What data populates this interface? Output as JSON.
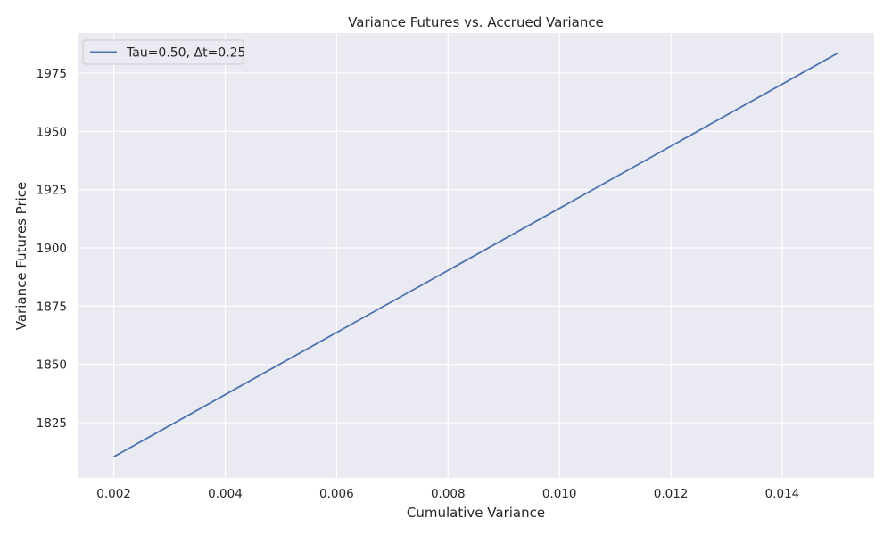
{
  "chart_data": {
    "type": "line",
    "title": "Variance Futures vs. Accrued Variance",
    "xlabel": "Cumulative Variance",
    "ylabel": "Variance Futures Price",
    "xlim": [
      0.00135,
      0.01565
    ],
    "ylim": [
      1801.3,
      1992.2
    ],
    "grid": true,
    "legend_position": "top-left",
    "xticks": [
      {
        "value": 0.002,
        "label": "0.002"
      },
      {
        "value": 0.004,
        "label": "0.004"
      },
      {
        "value": 0.006,
        "label": "0.006"
      },
      {
        "value": 0.008,
        "label": "0.008"
      },
      {
        "value": 0.01,
        "label": "0.010"
      },
      {
        "value": 0.012,
        "label": "0.012"
      },
      {
        "value": 0.014,
        "label": "0.014"
      }
    ],
    "yticks": [
      {
        "value": 1825,
        "label": "1825"
      },
      {
        "value": 1850,
        "label": "1850"
      },
      {
        "value": 1875,
        "label": "1875"
      },
      {
        "value": 1900,
        "label": "1900"
      },
      {
        "value": 1925,
        "label": "1925"
      },
      {
        "value": 1950,
        "label": "1950"
      },
      {
        "value": 1975,
        "label": "1975"
      }
    ],
    "series": [
      {
        "name": "Tau=0.50, Δt=0.25",
        "color": "#4c72b0",
        "x": [
          0.002,
          0.015
        ],
        "y": [
          1810.4,
          1983.6
        ]
      }
    ]
  },
  "colors": {
    "plot_background": "#eaeaf2",
    "grid": "#ffffff",
    "line": "#4c72b0"
  }
}
